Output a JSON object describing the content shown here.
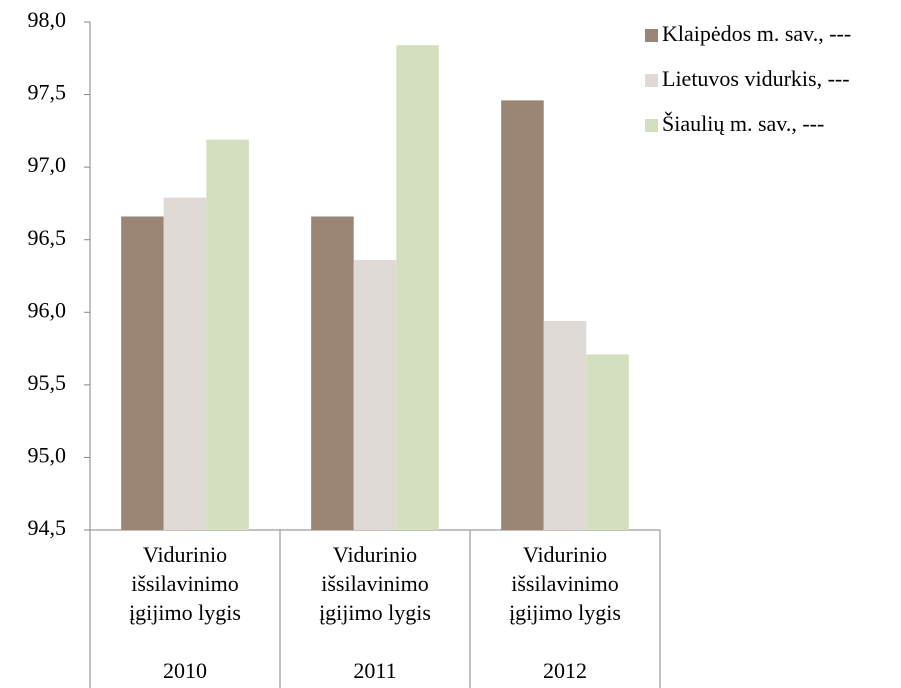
{
  "chart_data": {
    "type": "bar",
    "categories": [
      "2010",
      "2011",
      "2012"
    ],
    "category_sublabels": [
      "Vidurinio išsilavinimo įgijimo lygis",
      "Vidurinio išsilavinimo įgijimo lygis",
      "Vidurinio išsilavinimo įgijimo lygis"
    ],
    "series": [
      {
        "name": "Klaipėdos m. sav., ---",
        "color": "#9b8574",
        "values": [
          96.66,
          96.66,
          97.46
        ]
      },
      {
        "name": "Lietuvos vidurkis, ---",
        "color": "#e0dad6",
        "values": [
          96.79,
          96.36,
          95.94
        ]
      },
      {
        "name": "Šiaulių m. sav., ---",
        "color": "#d3dfbf",
        "values": [
          97.19,
          97.84,
          95.71
        ]
      }
    ],
    "ylim": [
      94.5,
      98.0
    ],
    "yticks": [
      {
        "value": 94.5,
        "label": "94,5"
      },
      {
        "value": 95.0,
        "label": "95,0"
      },
      {
        "value": 95.5,
        "label": "95,5"
      },
      {
        "value": 96.0,
        "label": "96,0"
      },
      {
        "value": 96.5,
        "label": "96,5"
      },
      {
        "value": 97.0,
        "label": "97,0"
      },
      {
        "value": 97.5,
        "label": "97,5"
      },
      {
        "value": 98.0,
        "label": "98,0"
      }
    ],
    "legend": "top-right",
    "grid": false
  }
}
